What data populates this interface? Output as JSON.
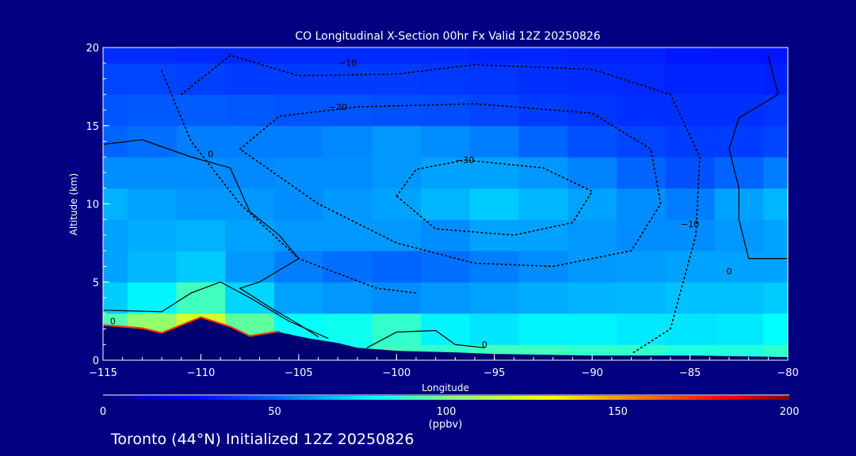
{
  "chart_data": {
    "type": "heatmap",
    "title": "CO Longitudinal X-Section 00hr  Fx Valid 12Z 20250826",
    "xlabel": "Longitude",
    "ylabel": "Altitude (km)",
    "xlim": [
      -115,
      -80
    ],
    "ylim": [
      0,
      20
    ],
    "xticks": [
      -115,
      -110,
      -105,
      -100,
      -95,
      -90,
      -85,
      -80
    ],
    "xtick_labels": [
      "−115",
      "−110",
      "−105",
      "−100",
      "−95",
      "−90",
      "−85",
      "−80"
    ],
    "yticks": [
      0,
      5,
      10,
      15,
      20
    ],
    "ytick_labels": [
      "0",
      "5",
      "10",
      "15",
      "20"
    ],
    "x": [
      -115,
      -112.5,
      -110,
      -107.5,
      -105,
      -102.5,
      -100,
      -97.5,
      -95,
      -92.5,
      -90,
      -87.5,
      -85,
      -82.5,
      -80
    ],
    "y": [
      0,
      2,
      4,
      6,
      8,
      10,
      12,
      14,
      16,
      18,
      20
    ],
    "values_ppbv": [
      [
        95,
        110,
        125,
        100,
        85,
        85,
        90,
        88,
        90,
        90,
        88,
        88,
        85,
        85,
        88
      ],
      [
        92,
        105,
        120,
        95,
        80,
        82,
        88,
        78,
        75,
        78,
        78,
        76,
        75,
        76,
        80
      ],
      [
        70,
        78,
        90,
        72,
        62,
        60,
        58,
        60,
        62,
        64,
        65,
        66,
        68,
        68,
        70
      ],
      [
        62,
        66,
        70,
        60,
        55,
        52,
        50,
        52,
        55,
        58,
        60,
        61,
        62,
        62,
        62
      ],
      [
        62,
        64,
        65,
        62,
        60,
        60,
        60,
        58,
        62,
        62,
        60,
        58,
        58,
        60,
        62
      ],
      [
        65,
        62,
        60,
        60,
        58,
        60,
        62,
        66,
        70,
        66,
        62,
        58,
        55,
        62,
        66
      ],
      [
        58,
        58,
        58,
        57,
        58,
        58,
        60,
        62,
        62,
        60,
        56,
        50,
        45,
        50,
        55
      ],
      [
        50,
        52,
        55,
        55,
        55,
        57,
        60,
        58,
        55,
        50,
        45,
        42,
        40,
        40,
        42
      ],
      [
        46,
        47,
        48,
        47,
        46,
        46,
        45,
        44,
        42,
        40,
        38,
        37,
        37,
        37,
        38
      ],
      [
        42,
        42,
        41,
        40,
        40,
        40,
        40,
        39,
        38,
        37,
        36,
        35,
        34,
        34,
        33
      ],
      [
        36,
        36,
        35,
        35,
        35,
        35,
        35,
        35,
        34,
        34,
        33,
        33,
        31,
        30,
        30
      ]
    ],
    "terrain_km": [
      [
        -115,
        2.2
      ],
      [
        -113,
        2.0
      ],
      [
        -112,
        1.7
      ],
      [
        -110,
        2.7
      ],
      [
        -108.5,
        2.1
      ],
      [
        -107.5,
        1.5
      ],
      [
        -106,
        1.8
      ],
      [
        -104.5,
        1.4
      ],
      [
        -103,
        1.1
      ],
      [
        -102,
        0.8
      ],
      [
        -100,
        0.6
      ],
      [
        -97,
        0.5
      ],
      [
        -95,
        0.4
      ],
      [
        -90,
        0.3
      ],
      [
        -85,
        0.3
      ],
      [
        -80,
        0.2
      ]
    ],
    "contours": [
      {
        "level": -30,
        "label": "−30",
        "style": "dotted",
        "label_at": [
          -96.5,
          12.6
        ],
        "points": [
          [
            -100,
            10.5
          ],
          [
            -99,
            12.2
          ],
          [
            -96.5,
            12.8
          ],
          [
            -92.5,
            12.3
          ],
          [
            -90,
            10.8
          ],
          [
            -91,
            8.8
          ],
          [
            -94,
            8.0
          ],
          [
            -98,
            8.4
          ],
          [
            -100,
            10.5
          ]
        ]
      },
      {
        "level": -20,
        "label": "−20",
        "style": "dotted",
        "label_at": [
          -103,
          16.0
        ],
        "points": [
          [
            -108,
            13.5
          ],
          [
            -106,
            15.6
          ],
          [
            -102,
            16.2
          ],
          [
            -96,
            16.4
          ],
          [
            -90,
            15.8
          ],
          [
            -87,
            13.5
          ],
          [
            -86.5,
            10
          ],
          [
            -88,
            7.0
          ],
          [
            -92,
            6.0
          ],
          [
            -96,
            6.2
          ],
          [
            -100,
            7.5
          ],
          [
            -104,
            10
          ],
          [
            -108,
            13.5
          ]
        ]
      },
      {
        "level": -10,
        "label": "−10",
        "style": "dotted",
        "label_at": [
          -102.5,
          18.8
        ],
        "points": [
          [
            -111,
            17.0
          ],
          [
            -108.5,
            19.5
          ],
          [
            -105,
            18.2
          ],
          [
            -100,
            18.3
          ],
          [
            -96,
            18.9
          ],
          [
            -90,
            18.6
          ],
          [
            -86,
            17.0
          ],
          [
            -84.5,
            13.0
          ],
          [
            -84.7,
            8.0
          ],
          [
            -86,
            2.0
          ],
          [
            -88,
            0.4
          ]
        ]
      },
      {
        "level": -10,
        "label": "−10",
        "style": "dotted",
        "label_at": [
          -85,
          8.5
        ],
        "points": [
          [
            -112,
            18.5
          ],
          [
            -110.5,
            14
          ],
          [
            -108,
            10
          ],
          [
            -105,
            6.5
          ],
          [
            -101,
            4.6
          ],
          [
            -99,
            4.3
          ]
        ]
      },
      {
        "level": 0,
        "label": "0",
        "style": "solid",
        "label_at": [
          -109.5,
          13.0
        ],
        "points": [
          [
            -115,
            13.8
          ],
          [
            -113,
            14.1
          ],
          [
            -110.5,
            13.0
          ],
          [
            -108.5,
            12.3
          ],
          [
            -107.5,
            9.5
          ],
          [
            -106,
            8.0
          ],
          [
            -105,
            6.5
          ],
          [
            -107,
            5.0
          ],
          [
            -108,
            4.6
          ],
          [
            -106.5,
            3.4
          ],
          [
            -105,
            2.3
          ],
          [
            -104,
            1.5
          ]
        ]
      },
      {
        "level": 0,
        "label": "0",
        "style": "solid",
        "label_at": [
          -83,
          5.5
        ],
        "points": [
          [
            -81,
            19.5
          ],
          [
            -80.5,
            17
          ],
          [
            -82.5,
            15.5
          ],
          [
            -83,
            13.5
          ],
          [
            -82.5,
            11
          ],
          [
            -82.5,
            9
          ],
          [
            -82,
            6.5
          ],
          [
            -80,
            6.5
          ]
        ]
      },
      {
        "level": 0,
        "label": "0",
        "style": "solid",
        "label_at": [
          -114.5,
          2.3
        ],
        "points": [
          [
            -115,
            3.2
          ],
          [
            -112,
            3.1
          ],
          [
            -110.5,
            4.3
          ],
          [
            -109,
            5.0
          ],
          [
            -107.5,
            4.0
          ],
          [
            -105.5,
            2.5
          ],
          [
            -103.5,
            1.4
          ]
        ]
      },
      {
        "level": 0,
        "label": "0",
        "style": "solid",
        "label_at": [
          -95.5,
          0.8
        ],
        "points": [
          [
            -101.5,
            0.8
          ],
          [
            -100,
            1.8
          ],
          [
            -98,
            1.9
          ],
          [
            -97,
            1.0
          ],
          [
            -95.5,
            0.8
          ]
        ]
      }
    ],
    "colorbar": {
      "min": 0,
      "max": 200,
      "ticks": [
        "0",
        "50",
        "100",
        "150",
        "200"
      ],
      "units": "(ppbv)",
      "stops": [
        [
          0,
          "#000080"
        ],
        [
          25,
          "#0000ff"
        ],
        [
          50,
          "#0064ff"
        ],
        [
          80,
          "#00ffff"
        ],
        [
          100,
          "#7fff7f"
        ],
        [
          130,
          "#ffff00"
        ],
        [
          155,
          "#ff8000"
        ],
        [
          182,
          "#ff0000"
        ],
        [
          200,
          "#800000"
        ]
      ]
    },
    "colors": {
      "background": "#000080",
      "terrain": "#000070"
    }
  },
  "footer": {
    "caption": "Toronto (44°N) Initialized 12Z 20250826"
  }
}
